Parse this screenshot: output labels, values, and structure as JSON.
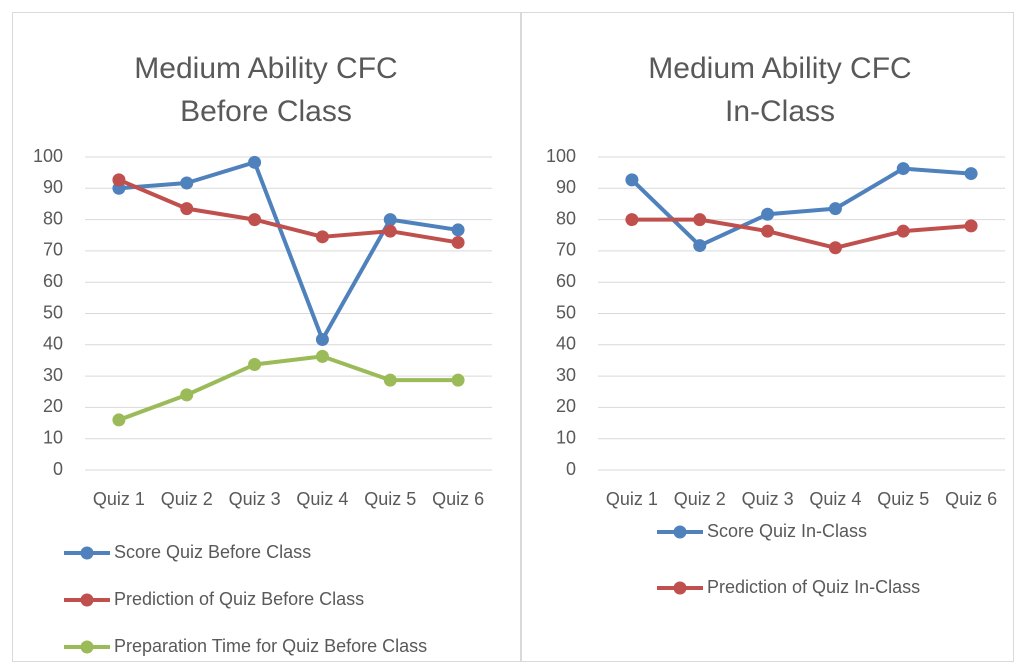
{
  "chart_data": [
    {
      "type": "line",
      "title": [
        "Medium Ability CFC",
        "Before Class"
      ],
      "categories": [
        "Quiz 1",
        "Quiz 2",
        "Quiz 3",
        "Quiz 4",
        "Quiz 5",
        "Quiz 6"
      ],
      "series": [
        {
          "name": "Score Quiz Before Class",
          "color": "#4f81bd",
          "values": [
            90,
            91.7,
            98.3,
            41.7,
            80,
            76.7
          ]
        },
        {
          "name": "Prediction of Quiz Before Class",
          "color": "#c0504d",
          "values": [
            92.7,
            83.5,
            80,
            74.5,
            76.3,
            72.7
          ]
        },
        {
          "name": "Preparation Time for Quiz Before Class",
          "color": "#9bbb59",
          "values": [
            16,
            24,
            33.7,
            36.3,
            28.7,
            28.7
          ]
        }
      ],
      "ylim": [
        0,
        100
      ],
      "yticks": [
        0,
        10,
        20,
        30,
        40,
        50,
        60,
        70,
        80,
        90,
        100
      ],
      "grid": true,
      "legend": "bottom"
    },
    {
      "type": "line",
      "title": [
        "Medium Ability CFC",
        "In-Class"
      ],
      "categories": [
        "Quiz 1",
        "Quiz 2",
        "Quiz 3",
        "Quiz 4",
        "Quiz 5",
        "Quiz 6"
      ],
      "series": [
        {
          "name": "Score Quiz In-Class",
          "color": "#4f81bd",
          "values": [
            92.7,
            71.7,
            81.7,
            83.5,
            96.3,
            94.7
          ]
        },
        {
          "name": "Prediction of Quiz In-Class",
          "color": "#c0504d",
          "values": [
            80,
            80,
            76.3,
            71,
            76.3,
            78
          ]
        }
      ],
      "ylim": [
        0,
        100
      ],
      "yticks": [
        0,
        10,
        20,
        30,
        40,
        50,
        60,
        70,
        80,
        90,
        100
      ],
      "grid": true,
      "legend": "bottom"
    }
  ]
}
